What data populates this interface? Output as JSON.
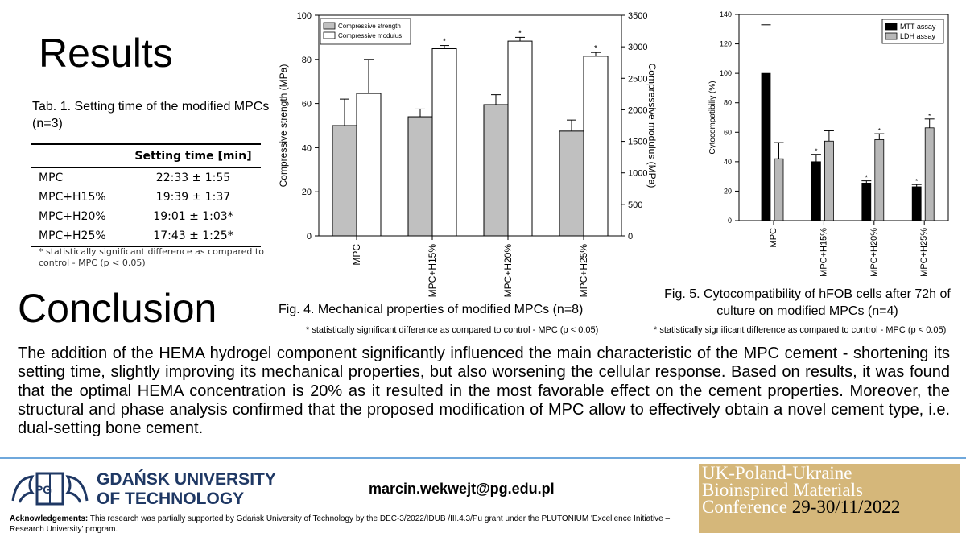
{
  "results_heading": "Results",
  "conclusion_heading": "Conclusion",
  "table": {
    "caption": "Tab. 1. Setting time of the modified MPCs (n=3)",
    "header": "Setting time [min]",
    "rows": [
      {
        "name": "MPC",
        "value": "22:33 ± 1:55"
      },
      {
        "name": "MPC+H15%",
        "value": "19:39 ± 1:37"
      },
      {
        "name": "MPC+H20%",
        "value": "19:01 ± 1:03*"
      },
      {
        "name": "MPC+H25%",
        "value": "17:43 ± 1:25*"
      }
    ],
    "note": "* statistically significant difference as compared to control - MPC (p < 0.05)"
  },
  "fig4": {
    "caption": "Fig. 4. Mechanical properties of modified MPCs (n=8)",
    "note": "* statistically significant difference as compared to control - MPC (p < 0.05)"
  },
  "fig5": {
    "caption": "Fig. 5. Cytocompatibility of hFOB cells after 72h of culture on modified MPCs (n=4)",
    "note": "* statistically significant difference as compared to control - MPC (p < 0.05)"
  },
  "chart_data": [
    {
      "type": "bar",
      "categories": [
        "MPC",
        "MPC+H15%",
        "MPC+H20%",
        "MPC+H25%"
      ],
      "ylabel": "Compressive strength (MPa)",
      "ylim": [
        0,
        100
      ],
      "y_ticks": [
        0,
        20,
        40,
        60,
        80,
        100
      ],
      "y2label": "Compressive modulus (MPa)",
      "y2lim": [
        0,
        3500
      ],
      "y2_ticks": [
        0,
        500,
        1000,
        1500,
        2000,
        2500,
        3000,
        3500
      ],
      "legend_position": "top-left",
      "series": [
        {
          "name": "Compressive strength",
          "axis": "left",
          "color": "#c0c0c0",
          "values": [
            50,
            54,
            59.5,
            47.5
          ],
          "errors": [
            12,
            3.5,
            4.5,
            5
          ],
          "significant": [
            false,
            false,
            false,
            false
          ]
        },
        {
          "name": "Compressive modulus",
          "axis": "right",
          "color": "#ffffff",
          "values": [
            2260,
            2970,
            3090,
            2850
          ],
          "errors": [
            540,
            50,
            60,
            60
          ],
          "significant": [
            false,
            true,
            true,
            true
          ]
        }
      ]
    },
    {
      "type": "bar",
      "categories": [
        "MPC",
        "MPC+H15%",
        "MPC+H20%",
        "MPC+H25%"
      ],
      "ylabel": "Cytocompatibiliy (%)",
      "ylim": [
        0,
        140
      ],
      "y_ticks": [
        0,
        20,
        40,
        60,
        80,
        100,
        120,
        140
      ],
      "legend_position": "top-right",
      "series": [
        {
          "name": "MTT assay",
          "color": "#000000",
          "values": [
            100,
            40,
            25.5,
            23
          ],
          "errors": [
            33,
            5,
            1.5,
            1.5
          ],
          "significant": [
            false,
            true,
            true,
            true
          ]
        },
        {
          "name": "LDH assay",
          "color": "#b8b8b8",
          "values": [
            42,
            54,
            55,
            63
          ],
          "errors": [
            11,
            7,
            4,
            6
          ],
          "significant": [
            false,
            false,
            true,
            true
          ]
        }
      ]
    }
  ],
  "conclusion_text": "The addition of the HEMA hydrogel component significantly influenced the main characteristic of the MPC cement - shortening its setting time, slightly improving its mechanical properties, but also worsening the cellular response. Based on results, it was found that the optimal HEMA concentration is 20% as it resulted in the most favorable effect on the cement properties. Moreover, the structural and phase analysis confirmed that the proposed modification of MPC allow to effectively obtain a novel cement type, i.e. dual-setting bone cement.",
  "footer": {
    "university_line1": "GDAŃSK UNIVERSITY",
    "university_line2": "OF TECHNOLOGY",
    "logo_letters": "PG",
    "email": "marcin.wekwejt@pg.edu.pl",
    "ack_label": "Acknowledgements:",
    "ack_text": " This research was partially supported by Gdańsk University of Technology by the DEC-3/2022/IDUB /III.4.3/Pu grant under the PLUTONIUM 'Excellence Initiative – Research University' program.",
    "conference_lines": [
      "UK-Poland-Ukraine",
      "Bioinspired Materials",
      "Conference"
    ],
    "conference_date": "29-30/11/2022",
    "brand_color": "#1f3864",
    "conference_color": "#d5b77a"
  }
}
